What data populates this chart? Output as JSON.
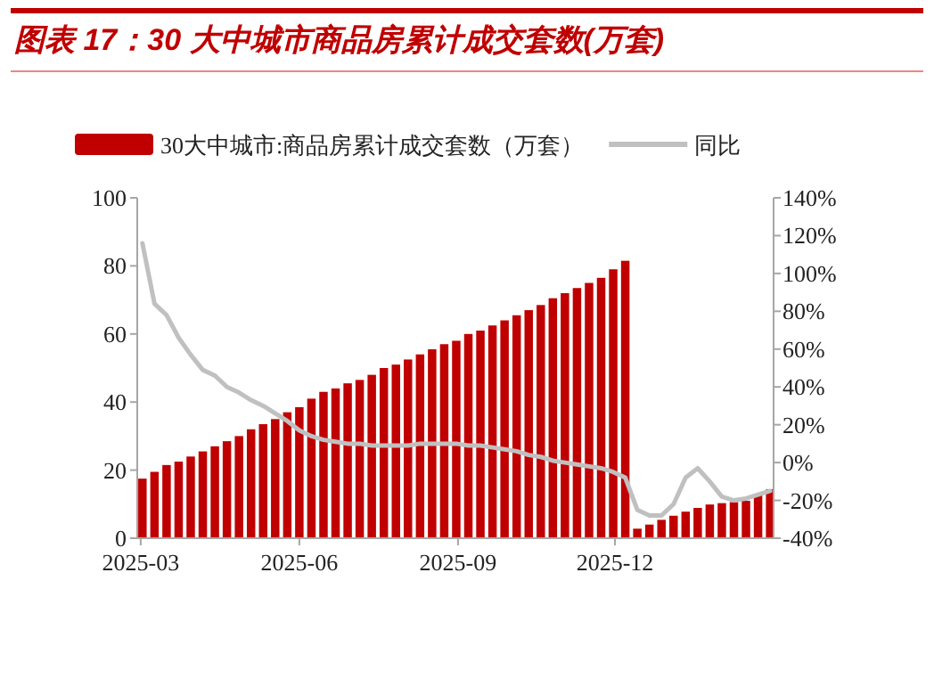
{
  "chart_data": {
    "type": "bar",
    "title": "图表 17：30 大中城市商品房累计成交套数(万套)",
    "x": [
      "2025-03-02",
      "2025-03-09",
      "2025-03-16",
      "2025-03-23",
      "2025-03-30",
      "2025-04-06",
      "2025-04-13",
      "2025-04-20",
      "2025-04-27",
      "2025-05-04",
      "2025-05-11",
      "2025-05-18",
      "2025-05-25",
      "2025-06-01",
      "2025-06-08",
      "2025-06-15",
      "2025-06-22",
      "2025-06-29",
      "2025-07-06",
      "2025-07-13",
      "2025-07-20",
      "2025-07-27",
      "2025-08-03",
      "2025-08-10",
      "2025-08-17",
      "2025-08-24",
      "2025-08-31",
      "2025-09-07",
      "2025-09-14",
      "2025-09-21",
      "2025-09-28",
      "2025-10-05",
      "2025-10-12",
      "2025-10-19",
      "2025-10-26",
      "2025-11-02",
      "2025-11-09",
      "2025-11-16",
      "2025-11-23",
      "2025-11-30",
      "2025-12-07",
      "2025-12-14",
      "2025-12-21",
      "2025-12-28",
      "2026-01-04",
      "2026-01-11",
      "2026-01-18",
      "2026-01-25",
      "2026-02-01",
      "2026-02-08",
      "2026-02-15",
      "2026-02-22",
      "2026-03-01"
    ],
    "xlim": [
      "2025-02-27",
      "2026-03-03"
    ],
    "xticks": [
      {
        "value": "2025-03-01",
        "label": "2025-03"
      },
      {
        "value": "2025-06-01",
        "label": "2025-06"
      },
      {
        "value": "2025-09-01",
        "label": "2025-09"
      },
      {
        "value": "2025-12-01",
        "label": "2025-12"
      }
    ],
    "ylim": [
      0,
      100
    ],
    "yticks": [
      0,
      20,
      40,
      60,
      80,
      100
    ],
    "y2lim": [
      -40,
      140
    ],
    "y2ticks": [
      {
        "value": -40,
        "label": "-40%"
      },
      {
        "value": -20,
        "label": "-20%"
      },
      {
        "value": 0,
        "label": "0%"
      },
      {
        "value": 20,
        "label": "20%"
      },
      {
        "value": 40,
        "label": "40%"
      },
      {
        "value": 60,
        "label": "60%"
      },
      {
        "value": 80,
        "label": "80%"
      },
      {
        "value": 100,
        "label": "100%"
      },
      {
        "value": 120,
        "label": "120%"
      },
      {
        "value": 140,
        "label": "140%"
      }
    ],
    "legend": "top",
    "series": [
      {
        "name": "30大中城市:商品房累计成交套数（万套）",
        "color": "#c00000",
        "values": [
          17.5,
          19.5,
          21.5,
          22.5,
          24,
          25.5,
          27,
          28.5,
          30,
          32,
          33.5,
          35,
          37,
          38.5,
          41,
          43,
          44,
          45.5,
          46.5,
          48,
          50,
          51,
          52.5,
          54,
          55.5,
          57,
          58,
          60,
          61,
          62.5,
          64,
          65.5,
          67,
          68.5,
          70.5,
          72,
          73.5,
          75,
          76.5,
          79,
          81.5,
          2.8,
          4,
          5.4,
          6.6,
          7.8,
          8.9,
          9.9,
          10.3,
          10.6,
          11,
          12.7,
          14.4
        ]
      },
      {
        "name": "同比",
        "type": "line",
        "axis": "y2",
        "color": "#c0c0c0",
        "values": [
          116,
          84,
          78,
          66,
          57,
          49,
          46,
          40,
          37,
          33,
          30,
          26,
          22,
          17,
          14,
          12,
          11,
          10,
          10,
          9,
          9,
          9,
          9,
          10,
          10,
          10,
          10,
          9,
          9,
          8,
          7,
          6,
          4,
          3,
          1,
          0,
          -1,
          -2,
          -3,
          -5,
          -8,
          -25,
          -28,
          -28,
          -22,
          -8,
          -3,
          -10,
          -18,
          -20,
          -19,
          -17,
          -15
        ]
      }
    ]
  }
}
